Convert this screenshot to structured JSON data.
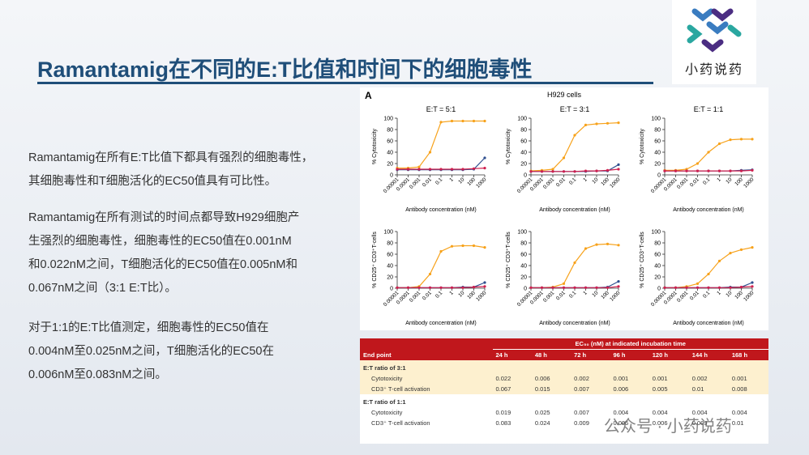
{
  "header": {
    "title": "Ramantamig在不同的E:T比值和时间下的细胞毒性",
    "logo": "小药说药"
  },
  "paragraphs": [
    [
      "Ramantamig在所有E:T比值下都具有强烈的细胞毒性，",
      "其细胞毒性和T细胞活化的EC50值具有可比性。"
    ],
    [
      "Ramantamig在所有测试的时间点都导致H929细胞产",
      "生强烈的细胞毒性，细胞毒性的EC50值在0.001nM",
      "和0.022nM之间，T细胞活化的EC50值在0.005nM和",
      "0.067nM之间（3:1 E:T比）。"
    ],
    [
      "对于1:1的E:T比值测定，细胞毒性的EC50值在",
      "0.004nM至0.025nM之间，T细胞活化的EC50在",
      "0.006nM至0.083nM之间。"
    ]
  ],
  "figure": {
    "label": "A",
    "title": "H929 cells"
  },
  "chart_data": [
    {
      "type": "line",
      "title": "E:T = 5:1",
      "ylabel": "% Cytotoxicity",
      "xlabel": "Antibody concentration (nM)",
      "log_x": true,
      "x": [
        1e-05,
        0.0001,
        0.001,
        0.01,
        0.1,
        1,
        10,
        100,
        1000
      ],
      "xlim": [
        1e-05,
        1000
      ],
      "xticks": [
        1e-05,
        0.0001,
        0.001,
        0.01,
        0.1,
        1,
        10,
        100,
        1000
      ],
      "ylim": [
        0,
        100
      ],
      "yticks": [
        0,
        20,
        40,
        60,
        80,
        100
      ],
      "series": [
        {
          "color": "#f7a21b",
          "values": [
            12,
            12,
            14,
            40,
            93,
            95,
            95,
            95,
            95
          ]
        },
        {
          "color": "#2f4f8f",
          "values": [
            9,
            9,
            9,
            9,
            9,
            9,
            9,
            10,
            30
          ]
        },
        {
          "color": "#d0204f",
          "values": [
            10,
            10,
            10,
            10,
            10,
            10,
            10,
            11,
            12
          ]
        }
      ]
    },
    {
      "type": "line",
      "title": "E:T = 3:1",
      "ylabel": "% Cytotoxicity",
      "xlabel": "Antibody concentration (nM)",
      "log_x": true,
      "x": [
        1e-05,
        0.0001,
        0.001,
        0.01,
        0.1,
        1,
        10,
        100,
        1000
      ],
      "xlim": [
        1e-05,
        1000
      ],
      "xticks": [
        1e-05,
        0.0001,
        0.001,
        0.01,
        0.1,
        1,
        10,
        100,
        1000
      ],
      "ylim": [
        0,
        100
      ],
      "yticks": [
        0,
        20,
        40,
        60,
        80,
        100
      ],
      "series": [
        {
          "color": "#f7a21b",
          "values": [
            7,
            8,
            10,
            30,
            70,
            88,
            90,
            91,
            92
          ]
        },
        {
          "color": "#2f4f8f",
          "values": [
            6,
            6,
            6,
            6,
            6,
            6,
            7,
            7,
            18
          ]
        },
        {
          "color": "#d0204f",
          "values": [
            6,
            6,
            6,
            6,
            6,
            7,
            7,
            8,
            10
          ]
        }
      ]
    },
    {
      "type": "line",
      "title": "E:T = 1:1",
      "ylabel": "% Cytotoxicity",
      "xlabel": "Antibody concentration (nM)",
      "log_x": true,
      "x": [
        1e-05,
        0.0001,
        0.001,
        0.01,
        0.1,
        1,
        10,
        100,
        1000
      ],
      "xlim": [
        1e-05,
        1000
      ],
      "xticks": [
        1e-05,
        0.0001,
        0.001,
        0.01,
        0.1,
        1,
        10,
        100,
        1000
      ],
      "ylim": [
        0,
        100
      ],
      "yticks": [
        0,
        20,
        40,
        60,
        80,
        100
      ],
      "series": [
        {
          "color": "#f7a21b",
          "values": [
            8,
            8,
            10,
            20,
            40,
            55,
            62,
            63,
            63
          ]
        },
        {
          "color": "#2f4f8f",
          "values": [
            7,
            7,
            7,
            7,
            7,
            7,
            7,
            8,
            9
          ]
        },
        {
          "color": "#d0204f",
          "values": [
            7,
            7,
            7,
            7,
            7,
            7,
            7,
            7,
            8
          ]
        }
      ]
    },
    {
      "type": "line",
      "ylabel": "% CD25⁺ CD3⁺T-cells",
      "xlabel": "Antibody concentration (nM)",
      "log_x": true,
      "x": [
        1e-05,
        0.0001,
        0.001,
        0.01,
        0.1,
        1,
        10,
        100,
        1000
      ],
      "xlim": [
        1e-05,
        1000
      ],
      "xticks": [
        1e-05,
        0.0001,
        0.001,
        0.01,
        0.1,
        1,
        10,
        100,
        1000
      ],
      "ylim": [
        0,
        100
      ],
      "yticks": [
        0,
        20,
        40,
        60,
        80,
        100
      ],
      "series": [
        {
          "color": "#f7a21b",
          "values": [
            1,
            1,
            3,
            25,
            65,
            74,
            75,
            75,
            72
          ]
        },
        {
          "color": "#2f4f8f",
          "values": [
            1,
            1,
            1,
            1,
            1,
            1,
            2,
            2,
            10
          ]
        },
        {
          "color": "#d0204f",
          "values": [
            1,
            1,
            1,
            1,
            1,
            1,
            1,
            2,
            3
          ]
        }
      ]
    },
    {
      "type": "line",
      "ylabel": "% CD25⁺ CD3⁺T-cells",
      "xlabel": "Antibody concentration (nM)",
      "log_x": true,
      "x": [
        1e-05,
        0.0001,
        0.001,
        0.01,
        0.1,
        1,
        10,
        100,
        1000
      ],
      "xlim": [
        1e-05,
        1000
      ],
      "xticks": [
        1e-05,
        0.0001,
        0.001,
        0.01,
        0.1,
        1,
        10,
        100,
        1000
      ],
      "ylim": [
        0,
        100
      ],
      "yticks": [
        0,
        20,
        40,
        60,
        80,
        100
      ],
      "series": [
        {
          "color": "#f7a21b",
          "values": [
            1,
            1,
            2,
            8,
            45,
            70,
            77,
            78,
            76
          ]
        },
        {
          "color": "#2f4f8f",
          "values": [
            1,
            1,
            1,
            1,
            1,
            1,
            1,
            2,
            12
          ]
        },
        {
          "color": "#d0204f",
          "values": [
            1,
            1,
            1,
            1,
            1,
            1,
            1,
            1,
            3
          ]
        }
      ]
    },
    {
      "type": "line",
      "ylabel": "% CD25⁺ CD3⁺T-cells",
      "xlabel": "Antibody concentration (nM)",
      "log_x": true,
      "x": [
        1e-05,
        0.0001,
        0.001,
        0.01,
        0.1,
        1,
        10,
        100,
        1000
      ],
      "xlim": [
        1e-05,
        1000
      ],
      "xticks": [
        1e-05,
        0.0001,
        0.001,
        0.01,
        0.1,
        1,
        10,
        100,
        1000
      ],
      "ylim": [
        0,
        100
      ],
      "yticks": [
        0,
        20,
        40,
        60,
        80,
        100
      ],
      "series": [
        {
          "color": "#f7a21b",
          "values": [
            1,
            1,
            3,
            8,
            25,
            48,
            62,
            68,
            72
          ]
        },
        {
          "color": "#2f4f8f",
          "values": [
            1,
            1,
            1,
            1,
            1,
            1,
            2,
            2,
            10
          ]
        },
        {
          "color": "#d0204f",
          "values": [
            1,
            1,
            1,
            1,
            1,
            1,
            1,
            2,
            3
          ]
        }
      ]
    }
  ],
  "table": {
    "super_header": "EC₅₀ (nM) at indicated incubation time",
    "header": [
      "End point",
      "24 h",
      "48 h",
      "72 h",
      "96 h",
      "120 h",
      "144 h",
      "168 h"
    ],
    "groups": [
      {
        "title": "E:T ratio of 3:1",
        "rows": [
          [
            "Cytotoxicity",
            "0.022",
            "0.006",
            "0.002",
            "0.001",
            "0.001",
            "0.002",
            "0.001"
          ],
          [
            "CD3⁺ T-cell activation",
            "0.067",
            "0.015",
            "0.007",
            "0.006",
            "0.005",
            "0.01",
            "0.008"
          ]
        ]
      },
      {
        "title": "E:T ratio of 1:1",
        "rows": [
          [
            "Cytotoxicity",
            "0.019",
            "0.025",
            "0.007",
            "0.004",
            "0.004",
            "0.004",
            "0.004"
          ],
          [
            "CD3⁺ T-cell activation",
            "0.083",
            "0.024",
            "0.009",
            "0.006",
            "0.006",
            "0.009",
            "0.01"
          ]
        ]
      }
    ]
  },
  "watermark": "公众号 · 小药说药"
}
